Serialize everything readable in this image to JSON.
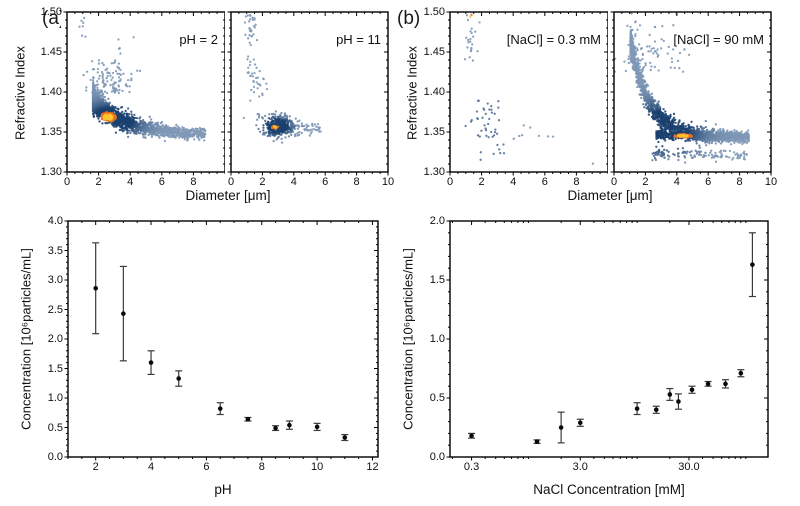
{
  "figure": {
    "background": "#ffffff",
    "colors": {
      "point_sparse_blue": "#8099b7",
      "point_dense_navy": "#1c4170",
      "point_hot_orange": "#e9701c",
      "point_core_yellow": "#fdc331",
      "axis_black": "#000000",
      "errorbar_gray": "#3a3a3a",
      "marker_black": "#0a0a0a"
    }
  },
  "panels": {
    "a": {
      "label": "(a)"
    },
    "b": {
      "label": "(b)"
    }
  },
  "chart_data": [
    {
      "id": "refractive-index-vs-diameter-ph2",
      "type": "scatter",
      "annotation": "pH = 2",
      "xlabel": "Diameter [μm]",
      "ylabel": "Refractive Index",
      "xlim": [
        0,
        10
      ],
      "ylim": [
        1.3,
        1.5
      ],
      "xticks": [
        0,
        2,
        4,
        6,
        8
      ],
      "xtick_labels": [
        "0",
        "2",
        "4",
        "6",
        "8"
      ],
      "yticks": [
        1.3,
        1.35,
        1.4,
        1.45,
        1.5
      ],
      "ytick_labels": [
        "1.30",
        "1.35",
        "1.40",
        "1.45",
        "1.50"
      ],
      "xminor": 0.5,
      "yminor": 0.01,
      "grid": false,
      "legend": "none",
      "seed": 7,
      "clusters": [
        {
          "kind": "curve",
          "n": 2100,
          "xr": [
            1.65,
            8.8
          ],
          "xpow": 2.4,
          "base": 1.3462,
          "amp": 0.046,
          "tau": 1.95,
          "noise": 0.0078,
          "ns": 3.2
        },
        {
          "kind": "plume",
          "n": 110,
          "cx": 2.8,
          "sx": 0.75,
          "y0": 1.398,
          "ysd": 0.022
        },
        {
          "kind": "vband",
          "n": 7,
          "cx": 1.05,
          "sx": 0.2,
          "yr": [
            1.468,
            1.493
          ]
        }
      ],
      "density": {
        "cx": 2.9,
        "cy": 1.365,
        "rx": 1.7,
        "ry": 0.02
      },
      "hotspot": {
        "cx": 2.6,
        "cy": 1.3685,
        "rx": 0.85,
        "ry": 0.0105
      }
    },
    {
      "id": "refractive-index-vs-diameter-ph11",
      "type": "scatter",
      "annotation": "pH = 11",
      "xlabel": "Diameter [μm]",
      "ylabel": "Refractive Index",
      "xlim": [
        0,
        10
      ],
      "ylim": [
        1.3,
        1.5
      ],
      "xticks": [
        0,
        2,
        4,
        6,
        8,
        10
      ],
      "xtick_labels": [
        "0",
        "2",
        "4",
        "6",
        "8",
        "10"
      ],
      "yticks": [
        1.3,
        1.35,
        1.4,
        1.45,
        1.5
      ],
      "ytick_labels": [],
      "xminor": 0.5,
      "yminor": 0.01,
      "grid": false,
      "legend": "none",
      "seed": 13,
      "clusters": [
        {
          "kind": "gauss",
          "n": 380,
          "cx": 2.95,
          "sx": 0.5,
          "cy": 1.3575,
          "sy": 0.0068
        },
        {
          "kind": "curve",
          "n": 70,
          "xr": [
            3.4,
            5.8
          ],
          "xpow": 1.3,
          "base": 1.3495,
          "amp": 0.008,
          "tau": 2.5,
          "noise": 0.0035
        },
        {
          "kind": "vband",
          "n": 38,
          "cx": 1.3,
          "sx": 0.18,
          "yr": [
            1.412,
            1.502
          ]
        },
        {
          "kind": "gauss",
          "n": 26,
          "cx": 1.75,
          "sx": 0.35,
          "cy": 1.402,
          "sy": 0.013
        },
        {
          "kind": "vband",
          "n": 5,
          "cx": 1.0,
          "sx": 0.12,
          "yr": [
            1.478,
            1.497
          ]
        }
      ],
      "density": {
        "cx": 2.9,
        "cy": 1.357,
        "rx": 0.95,
        "ry": 0.011
      },
      "hotspot": {
        "cx": 2.8,
        "cy": 1.356,
        "rx": 0.32,
        "ry": 0.0042
      }
    },
    {
      "id": "refractive-index-vs-diameter-nacl-0.3mM",
      "type": "scatter",
      "annotation": "[NaCl] = 0.3 mM",
      "xlabel": "Diameter [μm]",
      "ylabel": "Refractive Index",
      "xlim": [
        0,
        10
      ],
      "ylim": [
        1.3,
        1.5
      ],
      "xticks": [
        0,
        2,
        4,
        6,
        8
      ],
      "xtick_labels": [
        "0",
        "2",
        "4",
        "6",
        "8"
      ],
      "yticks": [
        1.3,
        1.35,
        1.4,
        1.45,
        1.5
      ],
      "ytick_labels": [
        "1.30",
        "1.35",
        "1.40",
        "1.45",
        "1.50"
      ],
      "xminor": 0.5,
      "yminor": 0.01,
      "grid": false,
      "legend": "none",
      "seed": 21,
      "clusters": [
        {
          "kind": "vband",
          "n": 24,
          "cx": 1.35,
          "sx": 0.2,
          "yr": [
            1.437,
            1.503
          ]
        },
        {
          "kind": "gauss",
          "n": 40,
          "cx": 2.35,
          "sx": 0.6,
          "cy": 1.363,
          "sy": 0.02
        },
        {
          "kind": "curve",
          "n": 8,
          "xr": [
            4.0,
            6.9
          ],
          "xpow": 1.0,
          "base": 1.3455,
          "amp": 0.004,
          "tau": 5,
          "noise": 0.004
        },
        {
          "kind": "gauss",
          "n": 5,
          "cx": 2.9,
          "sx": 0.45,
          "cy": 1.323,
          "sy": 0.006
        },
        {
          "kind": "vband",
          "n": 1,
          "cx": 9.0,
          "sx": 0.05,
          "yr": [
            1.307,
            1.312
          ]
        }
      ],
      "density": {
        "cx": 2.3,
        "cy": 1.36,
        "rx": 1.2,
        "ry": 0.05
      },
      "dmax": 0.45,
      "hotspot": {
        "cx": 1.32,
        "cy": 1.492,
        "rx": 0.22,
        "ry": 0.013
      }
    },
    {
      "id": "refractive-index-vs-diameter-nacl-90mM",
      "type": "scatter",
      "annotation": "[NaCl] = 90 mM",
      "xlabel": "Diameter [μm]",
      "ylabel": "Refractive Index",
      "xlim": [
        0,
        10
      ],
      "ylim": [
        1.3,
        1.5
      ],
      "xticks": [
        0,
        2,
        4,
        6,
        8,
        10
      ],
      "xtick_labels": [
        "0",
        "2",
        "4",
        "6",
        "8",
        "10"
      ],
      "yticks": [
        1.3,
        1.35,
        1.4,
        1.45,
        1.5
      ],
      "ytick_labels": [],
      "xminor": 0.5,
      "yminor": 0.01,
      "grid": false,
      "legend": "none",
      "seed": 42,
      "clusters": [
        {
          "kind": "curve",
          "n": 1500,
          "xr": [
            1.05,
            8.6
          ],
          "xpow": 1.75,
          "base": 1.3435,
          "amp": 0.118,
          "tau": 1.22,
          "noise": 0.0092,
          "ns": 3.2
        },
        {
          "kind": "curve",
          "n": 520,
          "xr": [
            2.7,
            8.6
          ],
          "xpow": 1.35,
          "base": 1.3438,
          "amp": 0.003,
          "tau": 3,
          "noise": 0.0026
        },
        {
          "kind": "curve",
          "n": 135,
          "xr": [
            2.4,
            8.5
          ],
          "xpow": 1.25,
          "base": 1.3215,
          "amp": 0.001,
          "tau": 2,
          "noise": 0.0036
        },
        {
          "kind": "plume",
          "n": 80,
          "cx": 2.4,
          "sx": 1.1,
          "y0": 1.425,
          "ysd": 0.028
        },
        {
          "kind": "vband",
          "n": 9,
          "cx": 1.15,
          "sx": 0.22,
          "yr": [
            1.462,
            1.502
          ]
        }
      ],
      "density": {
        "cx": 3.3,
        "cy": 1.355,
        "rx": 2.1,
        "ry": 0.03
      },
      "hotspot": {
        "cx": 4.4,
        "cy": 1.3452,
        "rx": 1.0,
        "ry": 0.0036
      }
    },
    {
      "id": "concentration-vs-ph",
      "type": "scatter-errorbar",
      "xlabel": "pH",
      "ylabel": "Concentration [10⁶particles/mL]",
      "xlim": [
        1,
        12.2
      ],
      "ylim": [
        0,
        4.0
      ],
      "xticks": [
        2,
        4,
        6,
        8,
        10,
        12
      ],
      "xtick_labels": [
        "2",
        "4",
        "6",
        "8",
        "10",
        "12"
      ],
      "yticks": [
        0,
        0.5,
        1.0,
        1.5,
        2.0,
        2.5,
        3.0,
        3.5,
        4.0
      ],
      "ytick_labels": [
        "0.0",
        "0.5",
        "1.0",
        "1.5",
        "2.0",
        "2.5",
        "3.0",
        "3.5",
        "4.0"
      ],
      "xminor": 0.5,
      "yminor": 0.1,
      "grid": false,
      "legend": "none",
      "x": [
        2,
        3,
        4,
        5,
        6.5,
        7.5,
        8.5,
        9,
        10,
        11
      ],
      "y": [
        2.86,
        2.43,
        1.6,
        1.33,
        0.82,
        0.64,
        0.49,
        0.54,
        0.51,
        0.33
      ],
      "yerr": [
        0.77,
        0.8,
        0.2,
        0.13,
        0.1,
        0.03,
        0.04,
        0.07,
        0.06,
        0.05
      ]
    },
    {
      "id": "concentration-vs-nacl",
      "type": "scatter-errorbar",
      "xscale": "log",
      "xlabel": "NaCl Concentration [mM]",
      "ylabel": "Concentration [10⁶particles/mL]",
      "xlim": [
        0.19,
        160
      ],
      "ylim": [
        0,
        2.0
      ],
      "xticks": [
        0.3,
        3,
        30
      ],
      "xtick_labels": [
        "0.3",
        "3.0",
        "30.0"
      ],
      "yticks": [
        0,
        0.5,
        1.0,
        1.5,
        2.0
      ],
      "ytick_labels": [
        "0.0",
        "0.5",
        "1.0",
        "1.5",
        "2.0"
      ],
      "yminor": 0.1,
      "grid": false,
      "legend": "none",
      "x": [
        0.3,
        1.2,
        2.0,
        3.0,
        10,
        15,
        20,
        24,
        32,
        45,
        65,
        90,
        115
      ],
      "y": [
        0.18,
        0.13,
        0.25,
        0.29,
        0.41,
        0.4,
        0.53,
        0.47,
        0.57,
        0.62,
        0.62,
        0.71,
        1.63
      ],
      "yerr": [
        0.02,
        0.015,
        0.13,
        0.03,
        0.05,
        0.03,
        0.05,
        0.065,
        0.03,
        0.02,
        0.035,
        0.03,
        0.27
      ]
    }
  ]
}
